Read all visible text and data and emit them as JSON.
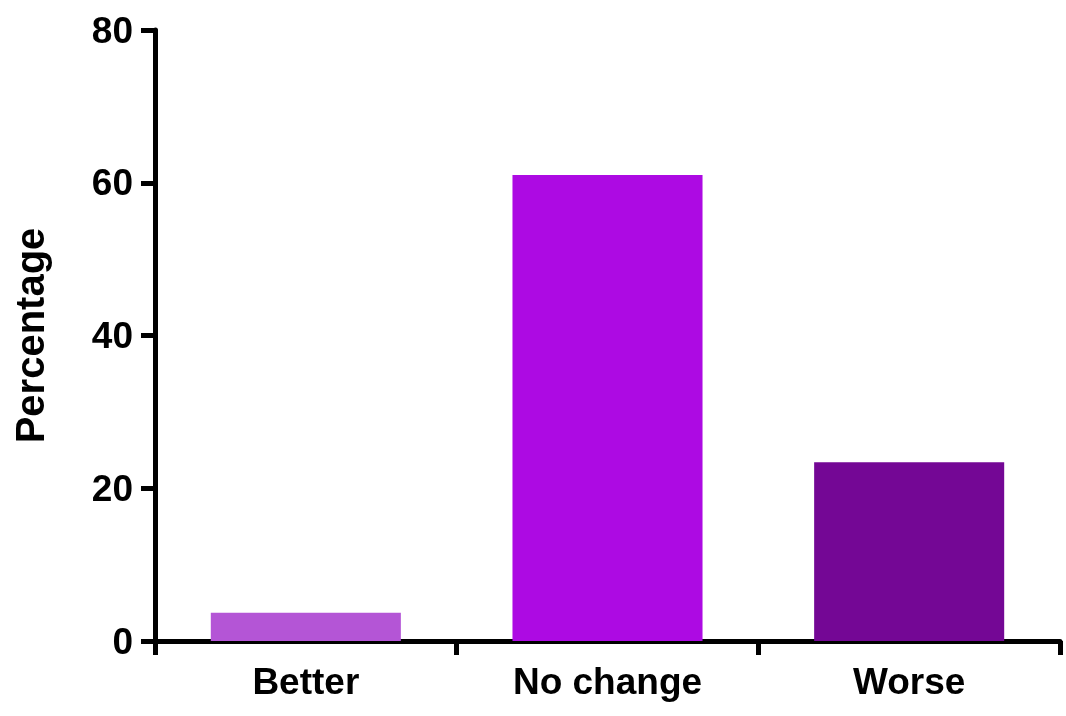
{
  "chart_data": {
    "type": "bar",
    "ylabel": "Percentage",
    "categories": [
      "Better",
      "No change",
      "Worse"
    ],
    "values": [
      3.7,
      61,
      23.4
    ],
    "colors": [
      "#b455d6",
      "#ad0ae3",
      "#740795"
    ],
    "ylim": [
      0,
      80
    ],
    "yticks": [
      0,
      20,
      40,
      60,
      80
    ],
    "grid": false
  }
}
